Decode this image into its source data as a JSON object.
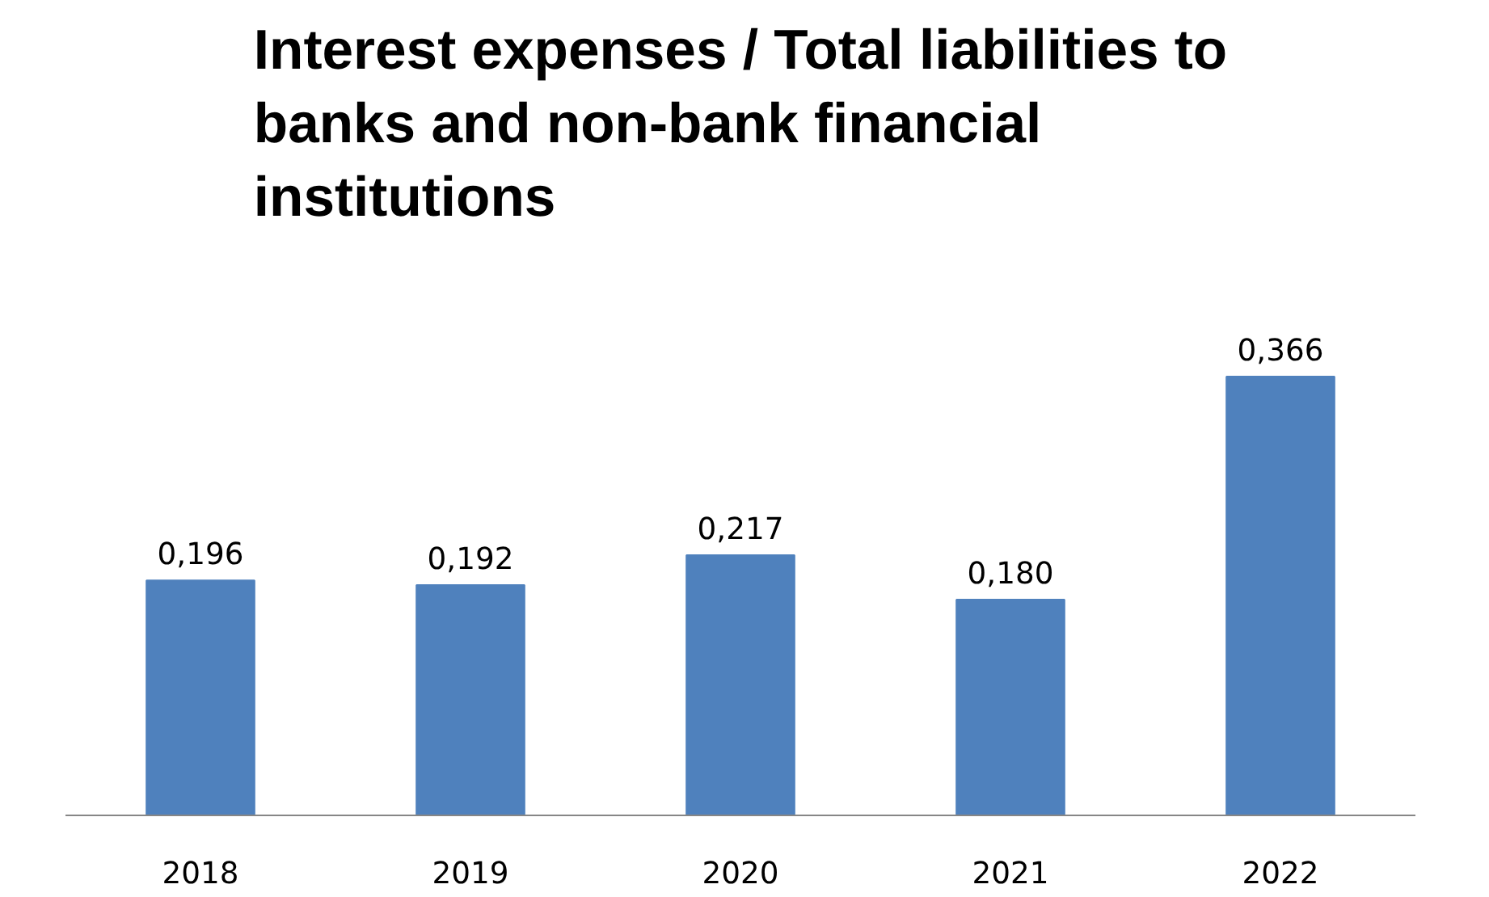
{
  "chart_data": {
    "type": "bar",
    "title": "Interest expenses / Total liabilities to banks and non-bank financial institutions",
    "categories": [
      "2018",
      "2019",
      "2020",
      "2021",
      "2022"
    ],
    "values": [
      0.196,
      0.192,
      0.217,
      0.18,
      0.366
    ],
    "value_labels": [
      "0,196",
      "0,192",
      "0,217",
      "0,180",
      "0,366"
    ],
    "color": "#4f81bd",
    "grid": false,
    "tick_labels": "x"
  }
}
